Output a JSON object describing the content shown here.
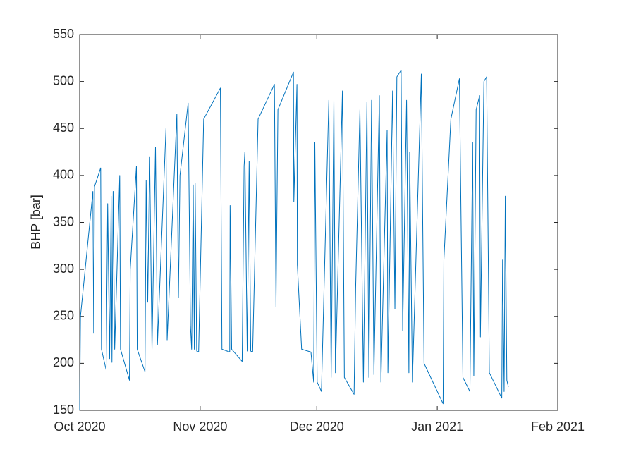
{
  "chart_data": {
    "type": "line",
    "y_label": "BHP [bar]",
    "color": "#0072bd",
    "x": [
      0,
      0.2,
      3.4,
      3.6,
      3.8,
      5.4,
      5.6,
      6.8,
      7.2,
      7.7,
      8.1,
      8.3,
      8.6,
      9.0,
      10.3,
      10.5,
      12.8,
      13.0,
      14.6,
      14.8,
      16.8,
      17.1,
      17.5,
      18.0,
      18.6,
      19.5,
      20.0,
      22.2,
      22.5,
      25.0,
      25.4,
      25.8,
      27.9,
      28.5,
      28.8,
      29.2,
      29.5,
      29.7,
      30.1,
      30.6,
      31.9,
      36.2,
      36.6,
      38.6,
      38.7,
      39.1,
      41.8,
      42.3,
      42.5,
      43.1,
      43.6,
      44.0,
      44.5,
      45.9,
      50.1,
      50.5,
      51.0,
      55.0,
      55.1,
      55.9,
      56.0,
      57.1,
      59.5,
      60.2,
      60.5,
      61.1,
      62.2,
      64.1,
      64.7,
      65.4,
      65.8,
      67.6,
      68.1,
      70.6,
      71.0,
      72.1,
      73.0,
      73.9,
      74.4,
      75.1,
      75.7,
      77.1,
      77.5,
      79.1,
      79.3,
      80.5,
      81.1,
      81.6,
      82.7,
      83.1,
      84.1,
      84.7,
      84.9,
      85.6,
      87.9,
      88.6,
      93.5,
      93.7,
      95.5,
      97.7,
      98.6,
      100.4,
      101.1,
      101.4,
      102.0,
      102.9,
      103.1,
      104.0,
      104.7,
      105.4,
      108.6,
      108.8,
      109.2,
      109.5,
      109.9,
      110.3
    ],
    "values": [
      150,
      250,
      383,
      232,
      388,
      408,
      215,
      193,
      370,
      205,
      378,
      201,
      383,
      215,
      400,
      215,
      182,
      300,
      410,
      215,
      191,
      395,
      265,
      420,
      215,
      430,
      220,
      450,
      225,
      465,
      270,
      400,
      477,
      240,
      215,
      390,
      215,
      392,
      213,
      212,
      460,
      493,
      215,
      212,
      368,
      215,
      202,
      410,
      425,
      213,
      415,
      213,
      212,
      460,
      497,
      260,
      470,
      510,
      372,
      497,
      305,
      215,
      212,
      180,
      435,
      180,
      170,
      480,
      185,
      480,
      190,
      490,
      185,
      167,
      280,
      470,
      180,
      478,
      185,
      480,
      188,
      485,
      180,
      448,
      190,
      490,
      258,
      505,
      512,
      235,
      480,
      190,
      425,
      180,
      508,
      200,
      157,
      310,
      460,
      503,
      185,
      170,
      435,
      187,
      470,
      485,
      228,
      500,
      505,
      190,
      163,
      310,
      170,
      378,
      182,
      175
    ],
    "xlim": [
      0,
      123
    ],
    "xticks": [
      {
        "value": 0,
        "label": "Oct 2020"
      },
      {
        "value": 31,
        "label": "Nov 2020"
      },
      {
        "value": 61,
        "label": "Dec 2020"
      },
      {
        "value": 92,
        "label": "Jan 2021"
      },
      {
        "value": 123,
        "label": "Feb 2021"
      }
    ],
    "ylim": [
      150,
      550
    ],
    "yticks": [
      150,
      200,
      250,
      300,
      350,
      400,
      450,
      500,
      550
    ]
  }
}
